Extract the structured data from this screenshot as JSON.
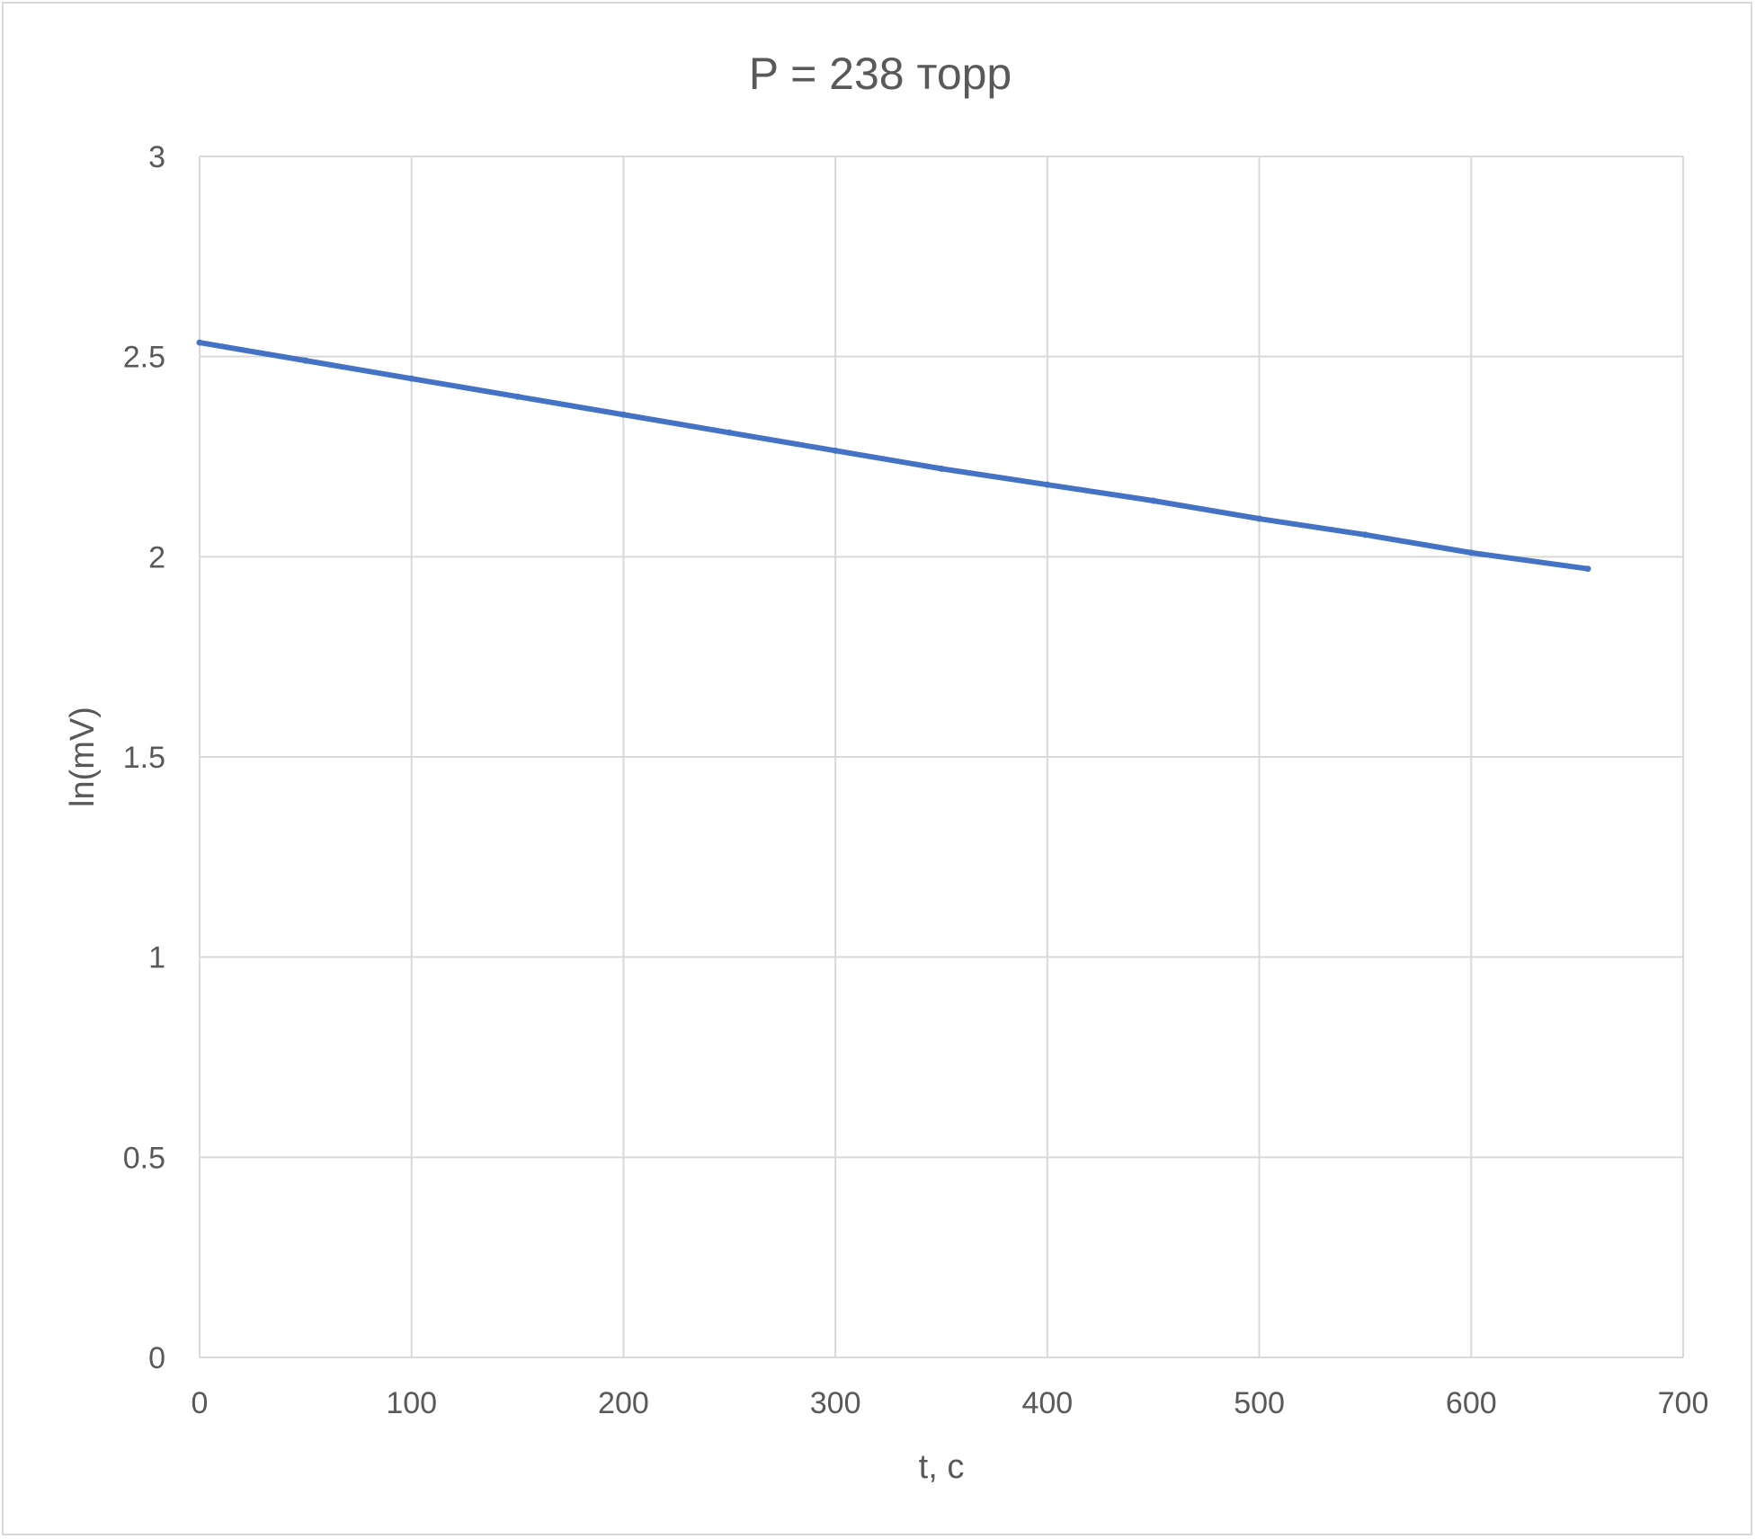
{
  "chart_data": {
    "type": "scatter",
    "title": "P = 238 торр",
    "xlabel": "t, c",
    "ylabel": "ln(mV)",
    "xlim": [
      0,
      700
    ],
    "ylim": [
      0,
      3
    ],
    "x_ticks": [
      "0",
      "100",
      "200",
      "300",
      "400",
      "500",
      "600",
      "700"
    ],
    "y_ticks": [
      "0",
      "0.5",
      "1",
      "1.5",
      "2",
      "2.5",
      "3"
    ],
    "grid": true,
    "legend": "none",
    "series": [
      {
        "color": "#4472c4",
        "style": "dense points forming a nearly straight line",
        "x": [
          0,
          50,
          100,
          150,
          200,
          250,
          300,
          350,
          400,
          450,
          500,
          550,
          600,
          655
        ],
        "y": [
          2.535,
          2.49,
          2.445,
          2.4,
          2.355,
          2.31,
          2.265,
          2.22,
          2.18,
          2.14,
          2.095,
          2.055,
          2.01,
          1.97
        ]
      }
    ]
  }
}
